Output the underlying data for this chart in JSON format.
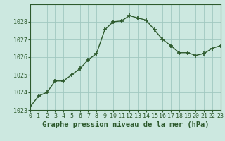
{
  "x": [
    0,
    1,
    2,
    3,
    4,
    5,
    6,
    7,
    8,
    9,
    10,
    11,
    12,
    13,
    14,
    15,
    16,
    17,
    18,
    19,
    20,
    21,
    22,
    23
  ],
  "y": [
    1023.2,
    1023.8,
    1024.0,
    1024.65,
    1024.65,
    1025.0,
    1025.35,
    1025.85,
    1026.2,
    1027.55,
    1028.0,
    1028.05,
    1028.35,
    1028.22,
    1028.1,
    1027.55,
    1027.0,
    1026.65,
    1026.25,
    1026.25,
    1026.1,
    1026.2,
    1026.5,
    1026.65
  ],
  "line_color": "#2d5a2d",
  "marker_color": "#2d5a2d",
  "bg_color": "#cce8e0",
  "grid_color": "#a0c8c0",
  "xlabel": "Graphe pression niveau de la mer (hPa)",
  "ylim": [
    1023,
    1029
  ],
  "xlim": [
    0,
    23
  ],
  "yticks": [
    1023,
    1024,
    1025,
    1026,
    1027,
    1028
  ],
  "xticks": [
    0,
    1,
    2,
    3,
    4,
    5,
    6,
    7,
    8,
    9,
    10,
    11,
    12,
    13,
    14,
    15,
    16,
    17,
    18,
    19,
    20,
    21,
    22,
    23
  ],
  "xtick_labels": [
    "0",
    "1",
    "2",
    "3",
    "4",
    "5",
    "6",
    "7",
    "8",
    "9",
    "10",
    "11",
    "12",
    "13",
    "14",
    "15",
    "16",
    "17",
    "18",
    "19",
    "20",
    "21",
    "22",
    "23"
  ],
  "xlabel_fontsize": 7.5,
  "tick_fontsize": 6.0,
  "border_color": "#2d5a2d"
}
